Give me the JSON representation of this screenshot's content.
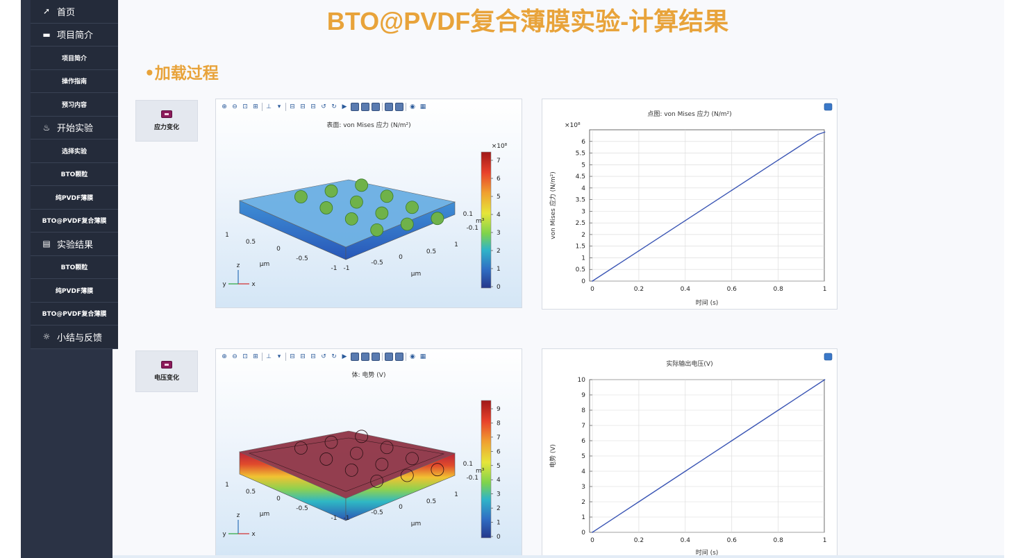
{
  "page": {
    "title": "BTO@PVDF复合薄膜实验-计算结果",
    "section": "•加载过程"
  },
  "sidebar": {
    "items": [
      {
        "label": "首页",
        "icon": "send-icon",
        "type": "top"
      },
      {
        "label": "项目简介",
        "icon": "book-icon",
        "type": "top"
      },
      {
        "label": "项目简介",
        "type": "sub"
      },
      {
        "label": "操作指南",
        "type": "sub"
      },
      {
        "label": "预习内容",
        "type": "sub"
      },
      {
        "label": "开始实验",
        "icon": "lab-icon",
        "type": "top"
      },
      {
        "label": "选择实验",
        "type": "sub"
      },
      {
        "label": "BTO颗粒",
        "type": "sub"
      },
      {
        "label": "纯PVDF薄膜",
        "type": "sub"
      },
      {
        "label": "BTO@PVDF复合薄膜",
        "type": "sub"
      },
      {
        "label": "实验结果",
        "icon": "clipboard-icon",
        "type": "top"
      },
      {
        "label": "BTO颗粒",
        "type": "sub"
      },
      {
        "label": "纯PVDF薄膜",
        "type": "sub"
      },
      {
        "label": "BTO@PVDF复合薄膜",
        "type": "sub"
      },
      {
        "label": "小结与反馈",
        "icon": "lightbulb-icon",
        "type": "top"
      }
    ]
  },
  "panels": [
    {
      "tab_label": "应力变化",
      "plot3d": {
        "title": "表面: von Mises 应力 (N/m²)",
        "colorbar_exp": "×10⁸",
        "colorbar_ticks": [
          "7",
          "6",
          "5",
          "4",
          "3",
          "2",
          "1",
          "0"
        ],
        "colorscale": "rainbow",
        "side_labels": [
          "0.1",
          "-0.1",
          "m³"
        ],
        "axis_numbers": [
          "1",
          "0.5",
          "0",
          "-0.5",
          "-1",
          "-1",
          "-0.5",
          "0",
          "0.5",
          "1"
        ],
        "unit_labels": [
          "μm",
          "μm"
        ],
        "triad": {
          "z": "z",
          "y": "y",
          "x": "x"
        }
      },
      "plot2d": {
        "title": "点图: von Mises 应力 (N/m²)",
        "ylabel": "von Mises 应力 (N/m²)",
        "xlabel": "时间 (s)",
        "yexp": "×10⁸"
      }
    },
    {
      "tab_label": "电压变化",
      "plot3d": {
        "title": "体: 电势 (V)",
        "colorbar_exp": "",
        "colorbar_ticks": [
          "9",
          "8",
          "7",
          "6",
          "5",
          "4",
          "3",
          "2",
          "1",
          "0"
        ],
        "colorscale": "rainbow",
        "side_labels": [
          "0.1",
          "-0.1",
          "m³"
        ],
        "axis_numbers": [
          "1",
          "0.5",
          "0",
          "-0.5",
          "-1",
          "-1",
          "-0.5",
          "0",
          "0.5",
          "1"
        ],
        "unit_labels": [
          "μm",
          "μm"
        ],
        "triad": {
          "z": "z",
          "y": "y",
          "x": "x"
        }
      },
      "plot2d": {
        "title": "实际输出电压(V)",
        "ylabel": "电势 (V)",
        "xlabel": "时间 (s)",
        "yexp": ""
      }
    }
  ],
  "chart_data": [
    {
      "type": "line",
      "title": "点图: von Mises 应力 (N/m²)",
      "xlabel": "时间 (s)",
      "ylabel": "von Mises 应力 (N/m²)",
      "y_multiplier": "×10⁸",
      "xlim": [
        0,
        1
      ],
      "ylim": [
        0,
        6.5
      ],
      "x_ticks": [
        "0",
        "0.2",
        "0.4",
        "0.6",
        "0.8",
        "1"
      ],
      "y_ticks": [
        "0",
        "0.5",
        "1",
        "1.5",
        "2",
        "2.5",
        "3",
        "3.5",
        "4",
        "4.5",
        "5",
        "5.5",
        "6"
      ],
      "grid": true,
      "series": [
        {
          "x": [
            0,
            0.2,
            0.4,
            0.6,
            0.8,
            0.97,
            1
          ],
          "y": [
            0,
            1.3,
            2.6,
            3.9,
            5.2,
            6.3,
            6.4
          ]
        }
      ],
      "color": "#3a55b4"
    },
    {
      "type": "line",
      "title": "实际输出电压(V)",
      "xlabel": "时间 (s)",
      "ylabel": "电势 (V)",
      "xlim": [
        0,
        1
      ],
      "ylim": [
        0,
        10
      ],
      "x_ticks": [
        "0",
        "0.2",
        "0.4",
        "0.6",
        "0.8",
        "1"
      ],
      "y_ticks": [
        "0",
        "1",
        "2",
        "3",
        "4",
        "5",
        "6",
        "7",
        "8",
        "9",
        "10"
      ],
      "grid": true,
      "series": [
        {
          "x": [
            0,
            0.2,
            0.4,
            0.6,
            0.8,
            1
          ],
          "y": [
            0,
            2,
            4,
            6,
            8,
            10
          ]
        }
      ],
      "color": "#3a55b4"
    }
  ]
}
